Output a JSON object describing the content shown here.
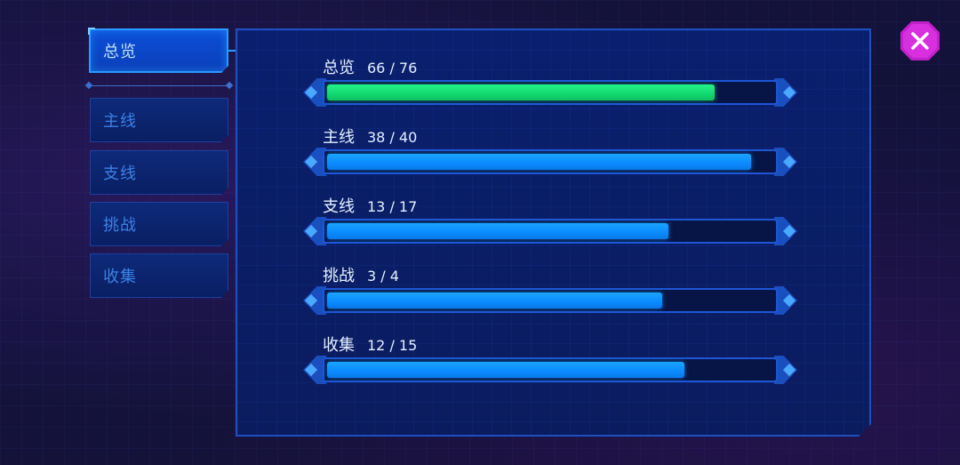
{
  "tabs": [
    {
      "label": "总览",
      "active": true
    },
    {
      "label": "主线",
      "active": false
    },
    {
      "label": "支线",
      "active": false
    },
    {
      "label": "挑战",
      "active": false
    },
    {
      "label": "收集",
      "active": false
    }
  ],
  "progress": [
    {
      "label": "总览",
      "count": "66 / 76",
      "current": 66,
      "total": 76,
      "color": "#23f28a"
    },
    {
      "label": "主线",
      "count": "38 / 40",
      "current": 38,
      "total": 40,
      "color": "#1aa3ff"
    },
    {
      "label": "支线",
      "count": "13 / 17",
      "current": 13,
      "total": 17,
      "color": "#1aa3ff"
    },
    {
      "label": "挑战",
      "count": "3 / 4",
      "current": 3,
      "total": 4,
      "color": "#1aa3ff"
    },
    {
      "label": "收集",
      "count": "12 / 15",
      "current": 12,
      "total": 15,
      "color": "#1aa3ff"
    }
  ],
  "close_button": {
    "icon": "close-icon",
    "color": "#d830df"
  }
}
